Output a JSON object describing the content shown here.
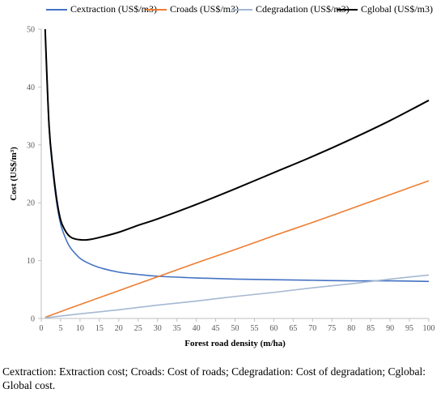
{
  "chart_data": {
    "type": "line",
    "xlabel": "Forest road density (m/ha)",
    "ylabel": "Cost (US$/m³)",
    "xlim": [
      0,
      100
    ],
    "ylim": [
      0,
      50
    ],
    "x_ticks": [
      0,
      5,
      10,
      15,
      20,
      25,
      30,
      35,
      40,
      45,
      50,
      55,
      60,
      65,
      70,
      75,
      80,
      85,
      90,
      95,
      100
    ],
    "y_ticks": [
      0,
      10,
      20,
      30,
      40,
      50
    ],
    "grid": false,
    "legend_position": "top",
    "series": [
      {
        "name": "Cextraction (US$/m3)",
        "color": "#4472c4",
        "x": [
          1,
          2,
          3,
          4,
          5,
          6,
          7,
          8,
          10,
          12,
          15,
          20,
          25,
          30,
          40,
          50,
          60,
          70,
          80,
          90,
          100
        ],
        "y": [
          50,
          33.2,
          25.4,
          19.9,
          16.3,
          14.3,
          12.8,
          11.8,
          10.4,
          9.6,
          8.8,
          8.0,
          7.6,
          7.3,
          7.0,
          6.8,
          6.7,
          6.6,
          6.5,
          6.5,
          6.4
        ]
      },
      {
        "name": "Croads (US$/m3)",
        "color": "#ed7d31",
        "x": [
          1,
          10,
          20,
          30,
          40,
          50,
          60,
          70,
          80,
          90,
          100
        ],
        "y": [
          0.2,
          2.4,
          4.8,
          7.2,
          9.6,
          11.9,
          14.3,
          16.6,
          19.0,
          21.4,
          23.8
        ]
      },
      {
        "name": "Cdegradation (US$/m3)",
        "color": "#a5b8d2",
        "x": [
          1,
          10,
          20,
          30,
          40,
          50,
          60,
          70,
          80,
          90,
          100
        ],
        "y": [
          0.1,
          0.8,
          1.5,
          2.3,
          3.0,
          3.8,
          4.5,
          5.3,
          6.0,
          6.8,
          7.5
        ]
      },
      {
        "name": "Cglobal (US$/m3)",
        "color": "#000000",
        "x": [
          1,
          2,
          3,
          4,
          5,
          6,
          7,
          8,
          10,
          12,
          15,
          20,
          25,
          30,
          40,
          50,
          60,
          70,
          80,
          90,
          100
        ],
        "y": [
          50,
          33.5,
          26.0,
          20.5,
          17.0,
          15.4,
          14.4,
          13.9,
          13.6,
          13.6,
          14.0,
          14.9,
          16.1,
          17.2,
          19.7,
          22.4,
          25.2,
          28.0,
          31.0,
          34.2,
          37.7
        ]
      }
    ]
  },
  "caption": "Cextraction: Extraction cost; Croads: Cost of roads; Cdegradation: Cost of degradation; Cglobal: Global cost."
}
